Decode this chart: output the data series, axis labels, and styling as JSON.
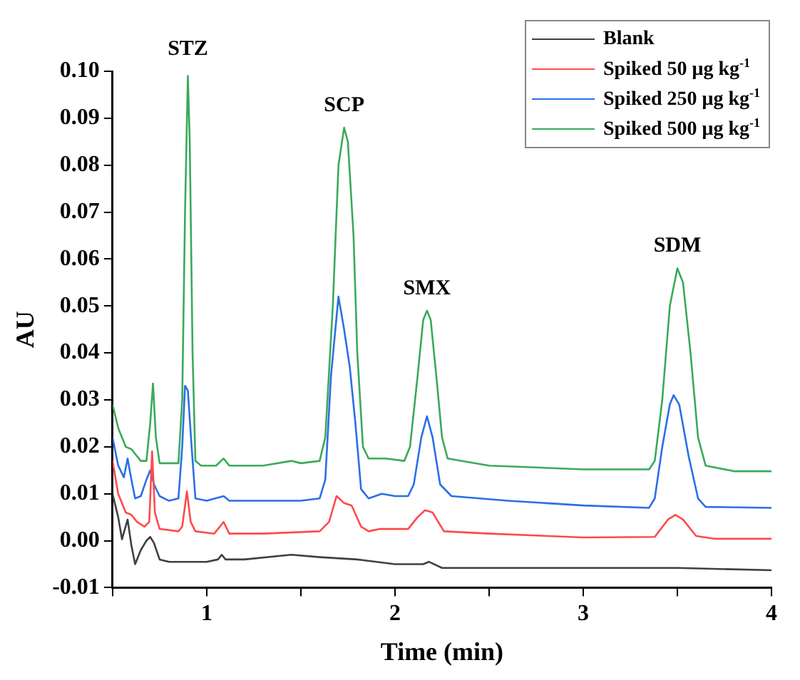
{
  "chart_data": {
    "type": "line",
    "xlabel": "Time (min)",
    "ylabel": "AU",
    "legend": "top right",
    "grid": false,
    "marker": "none",
    "line_style": "solid",
    "xlim": [
      0.5,
      4
    ],
    "xticks": [
      {
        "value": 0.5,
        "label": null
      },
      1,
      {
        "value": 1.5,
        "label": null
      },
      2,
      {
        "value": 2.5,
        "label": null
      },
      3,
      {
        "value": 3.5,
        "label": null
      },
      4
    ],
    "ylim": [
      -0.01,
      0.1
    ],
    "yticks": [
      {
        "value": -0.01,
        "label": "-0.01"
      },
      {
        "value": 0,
        "label": "0.00"
      },
      {
        "value": 0.01,
        "label": "0.01"
      },
      {
        "value": 0.02,
        "label": "0.02"
      },
      {
        "value": 0.03,
        "label": "0.03"
      },
      {
        "value": 0.04,
        "label": "0.04"
      },
      {
        "value": 0.05,
        "label": "0.05"
      },
      {
        "value": 0.06,
        "label": "0.06"
      },
      {
        "value": 0.07,
        "label": "0.07"
      },
      {
        "value": 0.08,
        "label": "0.08"
      },
      {
        "value": 0.09,
        "label": "0.09"
      },
      {
        "value": 0.1,
        "label": "0.10"
      }
    ],
    "annotations": [
      {
        "text": "STZ",
        "x": 0.9,
        "y": 0.1
      },
      {
        "text": "SCP",
        "x": 1.73,
        "y": 0.088
      },
      {
        "text": "SMX",
        "x": 2.17,
        "y": 0.049
      },
      {
        "text": "SDM",
        "x": 3.5,
        "y": 0.058
      }
    ],
    "series": [
      {
        "name": "Blank",
        "color": "#404040",
        "x": [
          0.5,
          0.53,
          0.55,
          0.58,
          0.6,
          0.62,
          0.65,
          0.68,
          0.7,
          0.72,
          0.75,
          0.8,
          1.0,
          1.06,
          1.08,
          1.1,
          1.2,
          1.45,
          1.6,
          1.8,
          2.0,
          2.15,
          2.18,
          2.25,
          2.5,
          3.0,
          3.5,
          4.0
        ],
        "values": [
          0.01,
          0.005,
          0.0003,
          0.0045,
          -0.001,
          -0.005,
          -0.002,
          0.0,
          0.0008,
          -0.0005,
          -0.004,
          -0.0045,
          -0.0045,
          -0.004,
          -0.003,
          -0.004,
          -0.004,
          -0.003,
          -0.0035,
          -0.004,
          -0.005,
          -0.005,
          -0.0045,
          -0.0058,
          -0.0058,
          -0.0058,
          -0.0058,
          -0.0063
        ]
      },
      {
        "name": "Spiked 50 μg kg$^{-1}$",
        "color": "#ff4a4a",
        "x": [
          0.5,
          0.53,
          0.57,
          0.6,
          0.63,
          0.67,
          0.695,
          0.71,
          0.725,
          0.75,
          0.85,
          0.87,
          0.895,
          0.915,
          0.94,
          1.04,
          1.09,
          1.12,
          1.3,
          1.6,
          1.65,
          1.69,
          1.73,
          1.77,
          1.82,
          1.86,
          1.92,
          2.07,
          2.12,
          2.16,
          2.2,
          2.26,
          2.5,
          3.0,
          3.38,
          3.45,
          3.49,
          3.53,
          3.6,
          3.7,
          4.0
        ],
        "values": [
          0.017,
          0.01,
          0.006,
          0.0055,
          0.004,
          0.003,
          0.004,
          0.019,
          0.006,
          0.0025,
          0.002,
          0.003,
          0.0105,
          0.004,
          0.002,
          0.0015,
          0.004,
          0.0015,
          0.0015,
          0.002,
          0.004,
          0.0095,
          0.008,
          0.0075,
          0.003,
          0.002,
          0.0025,
          0.0025,
          0.005,
          0.0065,
          0.006,
          0.002,
          0.0015,
          0.0007,
          0.0008,
          0.0045,
          0.0055,
          0.0045,
          0.001,
          0.0004,
          0.0004
        ]
      },
      {
        "name": "Spiked 250 μg kg$^{-1}$",
        "color": "#2a6fe8",
        "x": [
          0.5,
          0.53,
          0.56,
          0.58,
          0.6,
          0.62,
          0.65,
          0.68,
          0.7,
          0.72,
          0.75,
          0.8,
          0.85,
          0.87,
          0.885,
          0.9,
          0.92,
          0.94,
          1.0,
          1.09,
          1.12,
          1.5,
          1.6,
          1.63,
          1.66,
          1.7,
          1.73,
          1.76,
          1.79,
          1.82,
          1.86,
          1.93,
          2.0,
          2.07,
          2.1,
          2.14,
          2.17,
          2.2,
          2.24,
          2.3,
          2.6,
          3.0,
          3.35,
          3.38,
          3.42,
          3.46,
          3.48,
          3.51,
          3.56,
          3.61,
          3.65,
          4.0
        ],
        "values": [
          0.022,
          0.016,
          0.0135,
          0.0175,
          0.013,
          0.009,
          0.0095,
          0.013,
          0.015,
          0.012,
          0.0095,
          0.0085,
          0.009,
          0.02,
          0.033,
          0.032,
          0.02,
          0.009,
          0.0085,
          0.0095,
          0.0085,
          0.0085,
          0.009,
          0.013,
          0.035,
          0.052,
          0.045,
          0.037,
          0.025,
          0.011,
          0.009,
          0.01,
          0.0095,
          0.0095,
          0.012,
          0.022,
          0.0265,
          0.022,
          0.012,
          0.0095,
          0.0085,
          0.0075,
          0.007,
          0.009,
          0.02,
          0.029,
          0.031,
          0.029,
          0.018,
          0.009,
          0.0072,
          0.007
        ]
      },
      {
        "name": "Spiked 500 μg kg$^{-1}$",
        "color": "#3aaa5a",
        "x": [
          0.5,
          0.53,
          0.57,
          0.6,
          0.62,
          0.65,
          0.68,
          0.7,
          0.715,
          0.73,
          0.75,
          0.8,
          0.85,
          0.87,
          0.885,
          0.9,
          0.91,
          0.925,
          0.94,
          0.97,
          1.05,
          1.09,
          1.12,
          1.3,
          1.45,
          1.5,
          1.6,
          1.63,
          1.67,
          1.7,
          1.73,
          1.75,
          1.78,
          1.8,
          1.83,
          1.86,
          1.95,
          2.05,
          2.08,
          2.12,
          2.15,
          2.17,
          2.19,
          2.22,
          2.25,
          2.28,
          2.5,
          3.0,
          3.35,
          3.38,
          3.42,
          3.46,
          3.5,
          3.53,
          3.57,
          3.61,
          3.65,
          3.8,
          4.0
        ],
        "values": [
          0.029,
          0.024,
          0.02,
          0.0195,
          0.0185,
          0.017,
          0.017,
          0.025,
          0.0335,
          0.022,
          0.0165,
          0.0165,
          0.0165,
          0.03,
          0.07,
          0.099,
          0.085,
          0.04,
          0.017,
          0.016,
          0.016,
          0.0175,
          0.016,
          0.016,
          0.017,
          0.0165,
          0.017,
          0.022,
          0.05,
          0.08,
          0.088,
          0.085,
          0.065,
          0.04,
          0.02,
          0.0175,
          0.0175,
          0.017,
          0.02,
          0.035,
          0.047,
          0.049,
          0.047,
          0.035,
          0.022,
          0.0175,
          0.016,
          0.0152,
          0.0152,
          0.017,
          0.03,
          0.05,
          0.058,
          0.055,
          0.04,
          0.022,
          0.016,
          0.0148,
          0.0148
        ]
      }
    ]
  }
}
